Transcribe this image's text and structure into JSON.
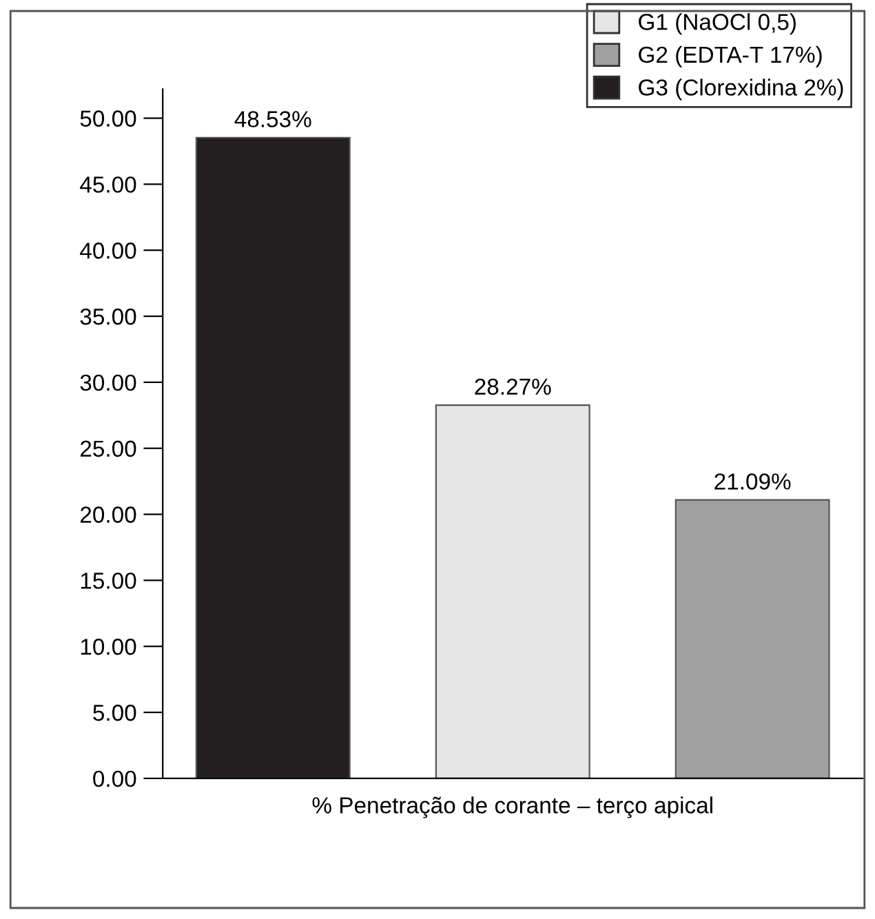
{
  "chart_data": {
    "type": "bar",
    "xlabel": "% Penetração de corante – terço apical",
    "categories": [
      null,
      null,
      null
    ],
    "series": [
      {
        "name": "G1 (NaOCl 0,5)",
        "color": "#e6e6e6",
        "values": [
          null,
          28.27,
          null
        ],
        "value_labels": [
          null,
          "28.27%",
          null
        ]
      },
      {
        "name": "G2 (EDTA-T 17%)",
        "color": "#a0a0a0",
        "values": [
          null,
          null,
          21.09
        ],
        "value_labels": [
          null,
          null,
          "21.09%"
        ]
      },
      {
        "name": "G3 (Clorexidina 2%)",
        "color": "#231f20",
        "values": [
          48.53,
          null,
          null
        ],
        "value_labels": [
          "48.53%",
          null,
          null
        ]
      }
    ],
    "ylim": [
      0,
      52.2
    ],
    "yticks": [
      {
        "value": 0,
        "label": "0.00"
      },
      {
        "value": 5,
        "label": "5.00"
      },
      {
        "value": 10,
        "label": "10.00"
      },
      {
        "value": 15,
        "label": "15.00"
      },
      {
        "value": 20,
        "label": "20.00"
      },
      {
        "value": 25,
        "label": "25.00"
      },
      {
        "value": 30,
        "label": "30.00"
      },
      {
        "value": 35,
        "label": "35.00"
      },
      {
        "value": 40,
        "label": "40.00"
      },
      {
        "value": 45,
        "label": "45.00"
      },
      {
        "value": 50,
        "label": "50.00"
      }
    ],
    "grid": false,
    "legend": "top right"
  }
}
